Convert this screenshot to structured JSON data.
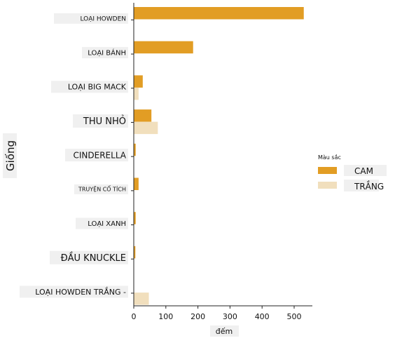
{
  "chart_data": {
    "type": "bar",
    "orientation": "horizontal",
    "categories": [
      "LOẠI HOWDEN",
      "LOẠI BÁNH",
      "LOẠI BIG MACK",
      "THU NHỎ",
      "CINDERELLA",
      "TRUYỆN CỔ TÍCH",
      "LOẠI XANH",
      "ĐẦU KNUCKLE",
      "LOẠI HOWDEN TRẮNG -"
    ],
    "series": [
      {
        "name": "CAM",
        "color": "#e29d24",
        "values": [
          530,
          185,
          28,
          55,
          6,
          15,
          6,
          5,
          0
        ]
      },
      {
        "name": "TRẮNG",
        "color": "#f1dfbd",
        "values": [
          0,
          0,
          15,
          75,
          0,
          0,
          0,
          0,
          47
        ]
      }
    ],
    "xlabel": "đếm",
    "ylabel": "Giống",
    "xlim": [
      0,
      560
    ],
    "xticks": [
      0,
      100,
      200,
      300,
      400,
      500
    ],
    "legend": {
      "title": "Màu sắc",
      "placement": "right"
    },
    "grid": false
  }
}
